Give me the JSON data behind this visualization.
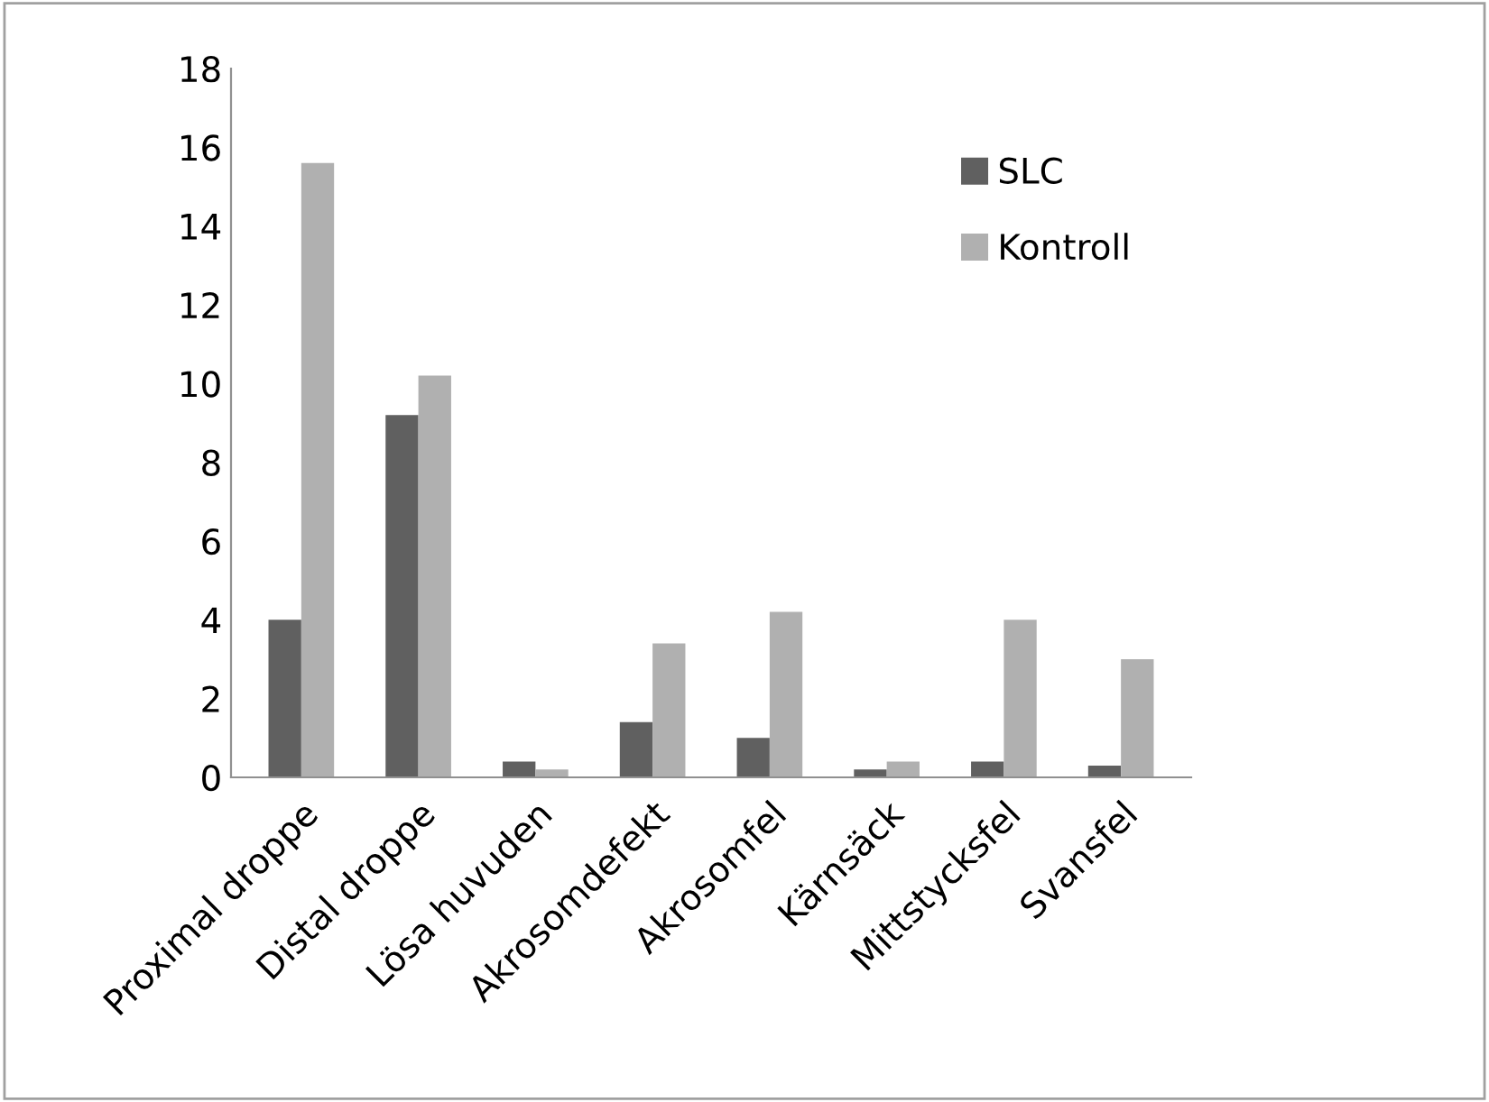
{
  "chart_data": {
    "type": "bar",
    "categories": [
      "Proximal droppe",
      "Distal droppe",
      "Lösa huvuden",
      "Akrosomdefekt",
      "Akrosomfel",
      "Kärnsäck",
      "Mittstycksfel",
      "Svansfel"
    ],
    "series": [
      {
        "name": "SLC",
        "color": "#606060",
        "values": [
          4.0,
          9.2,
          0.4,
          1.4,
          1.0,
          0.2,
          0.4,
          0.3
        ]
      },
      {
        "name": "Kontroll",
        "color": "#b0b0b0",
        "values": [
          15.6,
          10.2,
          0.2,
          3.4,
          4.2,
          0.4,
          4.0,
          3.0
        ]
      }
    ],
    "ylim": [
      0,
      18
    ],
    "yticks": [
      0,
      2,
      4,
      6,
      8,
      10,
      12,
      14,
      16,
      18
    ],
    "grid": false,
    "legend": "top right"
  }
}
